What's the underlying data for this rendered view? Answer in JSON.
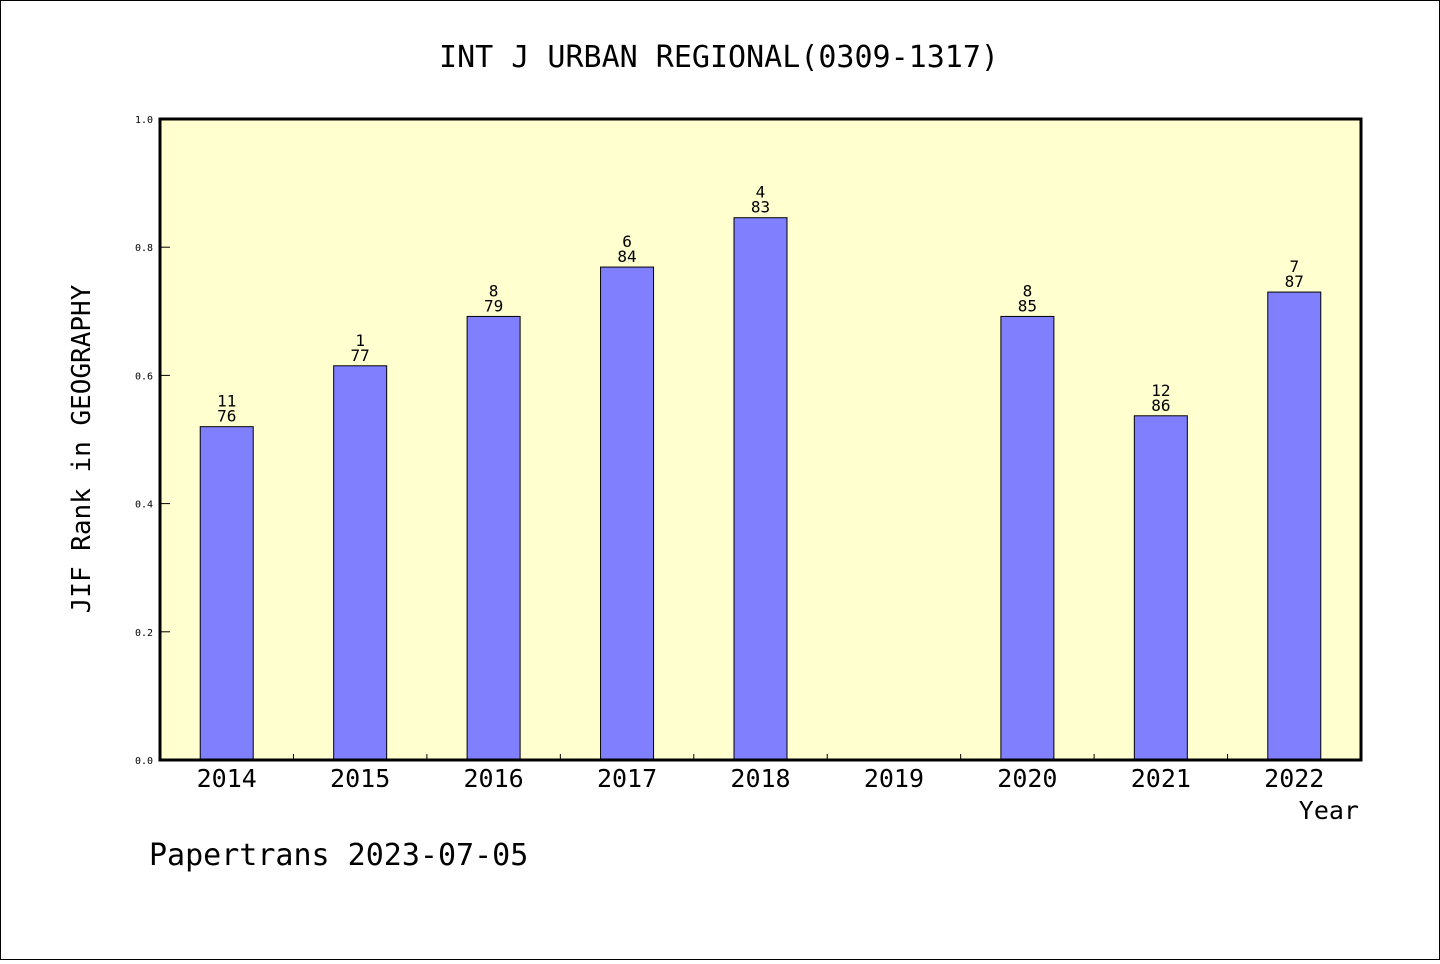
{
  "chart_data": {
    "type": "bar",
    "title": "INT J URBAN REGIONAL(0309-1317)",
    "xlabel": "Year",
    "ylabel": "JIF Rank in GEOGRAPHY",
    "ylim": [
      0,
      1.0
    ],
    "yticks": [
      "0.0",
      "0.2",
      "0.4",
      "0.6",
      "0.8",
      "1.0"
    ],
    "categories": [
      "2014",
      "2015",
      "2016",
      "2017",
      "2018",
      "2019",
      "2020",
      "2021",
      "2022"
    ],
    "values": [
      0.52,
      0.615,
      0.692,
      0.769,
      0.846,
      null,
      0.692,
      0.537,
      0.73
    ],
    "bar_labels": [
      {
        "rank": "11",
        "total": "76"
      },
      {
        "rank": "1",
        "total": "77"
      },
      {
        "rank": "8",
        "total": "79"
      },
      {
        "rank": "6",
        "total": "84"
      },
      {
        "rank": "4",
        "total": "83"
      },
      null,
      {
        "rank": "8",
        "total": "85"
      },
      {
        "rank": "12",
        "total": "86"
      },
      {
        "rank": "7",
        "total": "87"
      }
    ],
    "bar_color": "#8080ff",
    "plot_background": "#ffffd0",
    "grid": false,
    "legend": "none"
  },
  "footer": "Papertrans 2023-07-05"
}
